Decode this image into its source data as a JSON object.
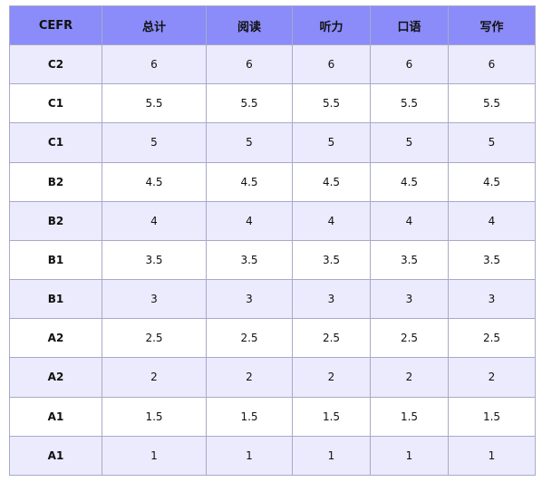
{
  "table": {
    "headers": [
      "CEFR",
      "总计",
      "阅读",
      "听力",
      "口语",
      "写作"
    ],
    "rows": [
      [
        "C2",
        "6",
        "6",
        "6",
        "6",
        "6"
      ],
      [
        "C1",
        "5.5",
        "5.5",
        "5.5",
        "5.5",
        "5.5"
      ],
      [
        "C1",
        "5",
        "5",
        "5",
        "5",
        "5"
      ],
      [
        "B2",
        "4.5",
        "4.5",
        "4.5",
        "4.5",
        "4.5"
      ],
      [
        "B2",
        "4",
        "4",
        "4",
        "4",
        "4"
      ],
      [
        "B1",
        "3.5",
        "3.5",
        "3.5",
        "3.5",
        "3.5"
      ],
      [
        "B1",
        "3",
        "3",
        "3",
        "3",
        "3"
      ],
      [
        "A2",
        "2.5",
        "2.5",
        "2.5",
        "2.5",
        "2.5"
      ],
      [
        "A2",
        "2",
        "2",
        "2",
        "2",
        "2"
      ],
      [
        "A1",
        "1.5",
        "1.5",
        "1.5",
        "1.5",
        "1.5"
      ],
      [
        "A1",
        "1",
        "1",
        "1",
        "1",
        "1"
      ]
    ]
  },
  "colors": {
    "header_bg": "#8b8cf9",
    "row_alt_bg": "#ebebfd",
    "row_bg": "#ffffff",
    "border": "#a9a9c8"
  }
}
